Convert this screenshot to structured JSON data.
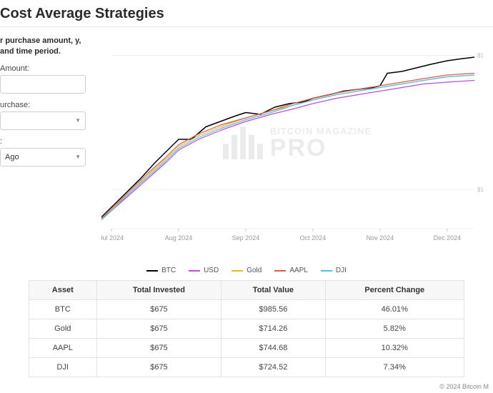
{
  "title": "Cost Average Strategies",
  "controls": {
    "instructions": "r purchase amount, y, and time period.",
    "amount_label": "Amount:",
    "amount_value": "",
    "purchase_label": "urchase:",
    "purchase_value": "",
    "period_label": ":",
    "period_value": "Ago"
  },
  "watermark": {
    "top": "BITCOIN MAGAZINE",
    "bottom": "PRO"
  },
  "chart": {
    "type": "line",
    "background_color": "#ffffff",
    "grid_color": "#f0f0f0",
    "x_ticks": [
      "Jul 2024",
      "Aug 2024",
      "Sep 2024",
      "Oct 2024",
      "Nov 2024",
      "Dec 2024"
    ],
    "x_positions": [
      0,
      0.185,
      0.37,
      0.555,
      0.74,
      0.925
    ],
    "y_ticks": [
      {
        "label": "$1",
        "pos": 0.03
      },
      {
        "label": "$1",
        "pos": 0.78
      }
    ],
    "series": [
      {
        "name": "BTC",
        "color": "#000000",
        "width": 1.5,
        "points": [
          [
            -0.05,
            0.98
          ],
          [
            0.0,
            0.88
          ],
          [
            0.04,
            0.8
          ],
          [
            0.08,
            0.72
          ],
          [
            0.12,
            0.63
          ],
          [
            0.16,
            0.55
          ],
          [
            0.185,
            0.5
          ],
          [
            0.22,
            0.5
          ],
          [
            0.26,
            0.43
          ],
          [
            0.3,
            0.4
          ],
          [
            0.34,
            0.37
          ],
          [
            0.37,
            0.35
          ],
          [
            0.41,
            0.36
          ],
          [
            0.45,
            0.32
          ],
          [
            0.49,
            0.3
          ],
          [
            0.53,
            0.29
          ],
          [
            0.555,
            0.27
          ],
          [
            0.6,
            0.25
          ],
          [
            0.64,
            0.23
          ],
          [
            0.68,
            0.22
          ],
          [
            0.72,
            0.21
          ],
          [
            0.74,
            0.2
          ],
          [
            0.76,
            0.13
          ],
          [
            0.8,
            0.12
          ],
          [
            0.84,
            0.1
          ],
          [
            0.88,
            0.08
          ],
          [
            0.925,
            0.06
          ],
          [
            0.96,
            0.05
          ],
          [
            1.0,
            0.04
          ]
        ]
      },
      {
        "name": "USD",
        "color": "#b84de0",
        "width": 1.2,
        "points": [
          [
            -0.05,
            0.99
          ],
          [
            0.0,
            0.9
          ],
          [
            0.05,
            0.81
          ],
          [
            0.1,
            0.72
          ],
          [
            0.15,
            0.63
          ],
          [
            0.185,
            0.56
          ],
          [
            0.24,
            0.5
          ],
          [
            0.3,
            0.45
          ],
          [
            0.37,
            0.4
          ],
          [
            0.44,
            0.36
          ],
          [
            0.5,
            0.33
          ],
          [
            0.555,
            0.3
          ],
          [
            0.62,
            0.27
          ],
          [
            0.68,
            0.25
          ],
          [
            0.74,
            0.23
          ],
          [
            0.8,
            0.21
          ],
          [
            0.86,
            0.19
          ],
          [
            0.925,
            0.18
          ],
          [
            1.0,
            0.17
          ]
        ]
      },
      {
        "name": "Gold",
        "color": "#e8b933",
        "width": 1.2,
        "points": [
          [
            -0.05,
            0.99
          ],
          [
            0.0,
            0.89
          ],
          [
            0.05,
            0.8
          ],
          [
            0.1,
            0.7
          ],
          [
            0.15,
            0.61
          ],
          [
            0.185,
            0.54
          ],
          [
            0.24,
            0.48
          ],
          [
            0.3,
            0.43
          ],
          [
            0.37,
            0.38
          ],
          [
            0.44,
            0.34
          ],
          [
            0.5,
            0.31
          ],
          [
            0.555,
            0.28
          ],
          [
            0.62,
            0.25
          ],
          [
            0.68,
            0.23
          ],
          [
            0.74,
            0.21
          ],
          [
            0.8,
            0.19
          ],
          [
            0.86,
            0.17
          ],
          [
            0.925,
            0.15
          ],
          [
            1.0,
            0.14
          ]
        ]
      },
      {
        "name": "AAPL",
        "color": "#e2584a",
        "width": 1.2,
        "points": [
          [
            -0.05,
            0.99
          ],
          [
            0.0,
            0.89
          ],
          [
            0.05,
            0.79
          ],
          [
            0.1,
            0.69
          ],
          [
            0.15,
            0.6
          ],
          [
            0.185,
            0.53
          ],
          [
            0.24,
            0.47
          ],
          [
            0.3,
            0.42
          ],
          [
            0.37,
            0.38
          ],
          [
            0.44,
            0.34
          ],
          [
            0.5,
            0.3
          ],
          [
            0.555,
            0.27
          ],
          [
            0.62,
            0.24
          ],
          [
            0.68,
            0.22
          ],
          [
            0.74,
            0.2
          ],
          [
            0.8,
            0.18
          ],
          [
            0.86,
            0.16
          ],
          [
            0.925,
            0.14
          ],
          [
            1.0,
            0.13
          ]
        ]
      },
      {
        "name": "DJI",
        "color": "#4fc1e0",
        "width": 1.2,
        "points": [
          [
            -0.05,
            0.99
          ],
          [
            0.0,
            0.9
          ],
          [
            0.05,
            0.8
          ],
          [
            0.1,
            0.71
          ],
          [
            0.15,
            0.62
          ],
          [
            0.185,
            0.55
          ],
          [
            0.24,
            0.49
          ],
          [
            0.3,
            0.44
          ],
          [
            0.37,
            0.39
          ],
          [
            0.44,
            0.35
          ],
          [
            0.5,
            0.31
          ],
          [
            0.555,
            0.28
          ],
          [
            0.62,
            0.25
          ],
          [
            0.68,
            0.23
          ],
          [
            0.74,
            0.21
          ],
          [
            0.8,
            0.19
          ],
          [
            0.86,
            0.17
          ],
          [
            0.925,
            0.15
          ],
          [
            1.0,
            0.14
          ]
        ]
      }
    ]
  },
  "table": {
    "columns": [
      "Asset",
      "Total Invested",
      "Total Value",
      "Percent Change"
    ],
    "rows": [
      [
        "BTC",
        "$675",
        "$985.56",
        "46.01%"
      ],
      [
        "Gold",
        "$675",
        "$714.26",
        "5.82%"
      ],
      [
        "AAPL",
        "$675",
        "$744.68",
        "10.32%"
      ],
      [
        "DJI",
        "$675",
        "$724.52",
        "7.34%"
      ]
    ]
  },
  "footer": "© 2024 Bitcoin M"
}
